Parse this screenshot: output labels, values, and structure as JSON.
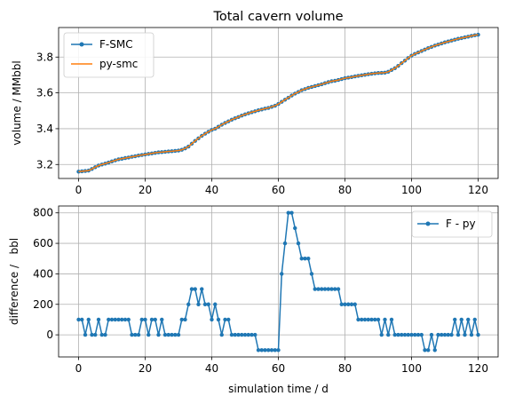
{
  "figure": {
    "chart_data": [
      {
        "type": "line",
        "title": "Total cavern volume",
        "xlabel": "",
        "ylabel": "volume / MMbbl",
        "xlim": [
          -6,
          126
        ],
        "ylim": [
          3.122,
          3.965
        ],
        "xticks": [
          0,
          20,
          40,
          60,
          80,
          100,
          120
        ],
        "yticks": [
          3.2,
          3.4,
          3.6,
          3.8
        ],
        "ytick_labels": [
          "3.2",
          "3.4",
          "3.6",
          "3.8"
        ],
        "grid": true,
        "legend_position": "upper-left",
        "series": [
          {
            "name": "F-SMC",
            "color": "#1f77b4",
            "marker": "dot",
            "x": [
              0,
              1,
              2,
              3,
              4,
              5,
              6,
              7,
              8,
              9,
              10,
              11,
              12,
              13,
              14,
              15,
              16,
              17,
              18,
              19,
              20,
              21,
              22,
              23,
              24,
              25,
              26,
              27,
              28,
              29,
              30,
              31,
              32,
              33,
              34,
              35,
              36,
              37,
              38,
              39,
              40,
              41,
              42,
              43,
              44,
              45,
              46,
              47,
              48,
              49,
              50,
              51,
              52,
              53,
              54,
              55,
              56,
              57,
              58,
              59,
              60,
              61,
              62,
              63,
              64,
              65,
              66,
              67,
              68,
              69,
              70,
              71,
              72,
              73,
              74,
              75,
              76,
              77,
              78,
              79,
              80,
              81,
              82,
              83,
              84,
              85,
              86,
              87,
              88,
              89,
              90,
              91,
              92,
              93,
              94,
              95,
              96,
              97,
              98,
              99,
              100,
              101,
              102,
              103,
              104,
              105,
              106,
              107,
              108,
              109,
              110,
              111,
              112,
              113,
              114,
              115,
              116,
              117,
              118,
              119,
              120
            ],
            "y": [
              3.16,
              3.162,
              3.164,
              3.166,
              3.175,
              3.185,
              3.194,
              3.2,
              3.205,
              3.211,
              3.217,
              3.223,
              3.229,
              3.232,
              3.236,
              3.239,
              3.243,
              3.246,
              3.25,
              3.253,
              3.256,
              3.259,
              3.262,
              3.265,
              3.268,
              3.269,
              3.271,
              3.273,
              3.274,
              3.276,
              3.278,
              3.282,
              3.29,
              3.3,
              3.316,
              3.332,
              3.346,
              3.36,
              3.372,
              3.383,
              3.393,
              3.4,
              3.411,
              3.422,
              3.432,
              3.441,
              3.45,
              3.458,
              3.465,
              3.473,
              3.48,
              3.486,
              3.492,
              3.497,
              3.503,
              3.507,
              3.512,
              3.516,
              3.522,
              3.528,
              3.538,
              3.55,
              3.562,
              3.573,
              3.585,
              3.596,
              3.605,
              3.615,
              3.621,
              3.628,
              3.633,
              3.638,
              3.643,
              3.648,
              3.654,
              3.66,
              3.665,
              3.668,
              3.672,
              3.677,
              3.682,
              3.685,
              3.688,
              3.692,
              3.695,
              3.698,
              3.701,
              3.704,
              3.707,
              3.709,
              3.711,
              3.712,
              3.713,
              3.718,
              3.728,
              3.738,
              3.751,
              3.766,
              3.78,
              3.795,
              3.808,
              3.818,
              3.826,
              3.834,
              3.842,
              3.85,
              3.857,
              3.864,
              3.87,
              3.876,
              3.882,
              3.887,
              3.892,
              3.897,
              3.902,
              3.906,
              3.91,
              3.914,
              3.918,
              3.922,
              3.925
            ]
          },
          {
            "name": "py-smc",
            "color": "#ff7f0e",
            "marker": "none",
            "x": [
              0,
              1,
              2,
              3,
              4,
              5,
              6,
              7,
              8,
              9,
              10,
              11,
              12,
              13,
              14,
              15,
              16,
              17,
              18,
              19,
              20,
              21,
              22,
              23,
              24,
              25,
              26,
              27,
              28,
              29,
              30,
              31,
              32,
              33,
              34,
              35,
              36,
              37,
              38,
              39,
              40,
              41,
              42,
              43,
              44,
              45,
              46,
              47,
              48,
              49,
              50,
              51,
              52,
              53,
              54,
              55,
              56,
              57,
              58,
              59,
              60,
              61,
              62,
              63,
              64,
              65,
              66,
              67,
              68,
              69,
              70,
              71,
              72,
              73,
              74,
              75,
              76,
              77,
              78,
              79,
              80,
              81,
              82,
              83,
              84,
              85,
              86,
              87,
              88,
              89,
              90,
              91,
              92,
              93,
              94,
              95,
              96,
              97,
              98,
              99,
              100,
              101,
              102,
              103,
              104,
              105,
              106,
              107,
              108,
              109,
              110,
              111,
              112,
              113,
              114,
              115,
              116,
              117,
              118,
              119,
              120
            ],
            "y": [
              3.16,
              3.162,
              3.164,
              3.166,
              3.175,
              3.185,
              3.194,
              3.2,
              3.205,
              3.211,
              3.217,
              3.223,
              3.229,
              3.232,
              3.236,
              3.239,
              3.243,
              3.246,
              3.25,
              3.253,
              3.256,
              3.259,
              3.262,
              3.265,
              3.268,
              3.269,
              3.271,
              3.273,
              3.274,
              3.276,
              3.278,
              3.282,
              3.29,
              3.3,
              3.316,
              3.332,
              3.346,
              3.36,
              3.372,
              3.383,
              3.393,
              3.4,
              3.411,
              3.422,
              3.432,
              3.441,
              3.45,
              3.458,
              3.465,
              3.473,
              3.48,
              3.486,
              3.492,
              3.497,
              3.503,
              3.507,
              3.512,
              3.516,
              3.522,
              3.528,
              3.538,
              3.55,
              3.562,
              3.573,
              3.585,
              3.596,
              3.605,
              3.615,
              3.621,
              3.628,
              3.633,
              3.638,
              3.643,
              3.648,
              3.654,
              3.66,
              3.665,
              3.668,
              3.672,
              3.677,
              3.682,
              3.685,
              3.688,
              3.692,
              3.695,
              3.698,
              3.701,
              3.704,
              3.707,
              3.709,
              3.711,
              3.712,
              3.713,
              3.718,
              3.728,
              3.738,
              3.751,
              3.766,
              3.78,
              3.795,
              3.808,
              3.818,
              3.826,
              3.834,
              3.842,
              3.85,
              3.857,
              3.864,
              3.87,
              3.876,
              3.882,
              3.887,
              3.892,
              3.897,
              3.902,
              3.906,
              3.91,
              3.914,
              3.918,
              3.922,
              3.925
            ]
          }
        ]
      },
      {
        "type": "line",
        "title": "",
        "xlabel": "simulation time / d",
        "ylabel": "difference /   bbl",
        "xlim": [
          -6,
          126
        ],
        "ylim": [
          -145,
          845
        ],
        "xticks": [
          0,
          20,
          40,
          60,
          80,
          100,
          120
        ],
        "yticks": [
          0,
          200,
          400,
          600,
          800
        ],
        "ytick_labels": [
          "0",
          "200",
          "400",
          "600",
          "800"
        ],
        "grid": true,
        "legend_position": "upper-right",
        "series": [
          {
            "name": "F - py",
            "color": "#1f77b4",
            "marker": "dot",
            "x": [
              0,
              1,
              2,
              3,
              4,
              5,
              6,
              7,
              8,
              9,
              10,
              11,
              12,
              13,
              14,
              15,
              16,
              17,
              18,
              19,
              20,
              21,
              22,
              23,
              24,
              25,
              26,
              27,
              28,
              29,
              30,
              31,
              32,
              33,
              34,
              35,
              36,
              37,
              38,
              39,
              40,
              41,
              42,
              43,
              44,
              45,
              46,
              47,
              48,
              49,
              50,
              51,
              52,
              53,
              54,
              55,
              56,
              57,
              58,
              59,
              60,
              61,
              62,
              63,
              64,
              65,
              66,
              67,
              68,
              69,
              70,
              71,
              72,
              73,
              74,
              75,
              76,
              77,
              78,
              79,
              80,
              81,
              82,
              83,
              84,
              85,
              86,
              87,
              88,
              89,
              90,
              91,
              92,
              93,
              94,
              95,
              96,
              97,
              98,
              99,
              100,
              101,
              102,
              103,
              104,
              105,
              106,
              107,
              108,
              109,
              110,
              111,
              112,
              113,
              114,
              115,
              116,
              117,
              118,
              119,
              120
            ],
            "y": [
              100,
              100,
              0,
              100,
              0,
              0,
              100,
              0,
              0,
              100,
              100,
              100,
              100,
              100,
              100,
              100,
              0,
              0,
              0,
              100,
              100,
              0,
              100,
              100,
              0,
              100,
              0,
              0,
              0,
              0,
              0,
              100,
              100,
              200,
              300,
              300,
              200,
              300,
              200,
              200,
              100,
              200,
              100,
              0,
              100,
              100,
              0,
              0,
              0,
              0,
              0,
              0,
              0,
              0,
              -100,
              -100,
              -100,
              -100,
              -100,
              -100,
              -100,
              400,
              600,
              800,
              800,
              700,
              600,
              500,
              500,
              500,
              400,
              300,
              300,
              300,
              300,
              300,
              300,
              300,
              300,
              200,
              200,
              200,
              200,
              200,
              100,
              100,
              100,
              100,
              100,
              100,
              100,
              0,
              100,
              0,
              100,
              0,
              0,
              0,
              0,
              0,
              0,
              0,
              0,
              0,
              -100,
              -100,
              0,
              -100,
              0,
              0,
              0,
              0,
              0,
              100,
              0,
              100,
              0,
              100,
              0,
              100,
              0
            ]
          }
        ]
      }
    ]
  }
}
